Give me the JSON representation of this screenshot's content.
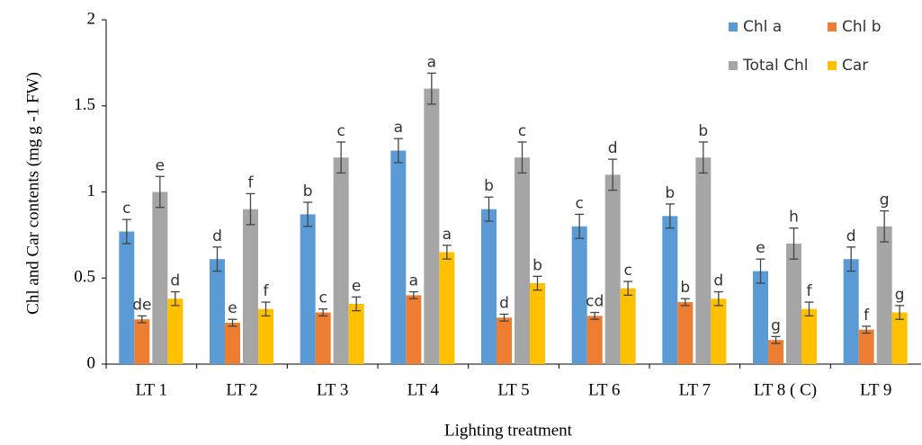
{
  "chart_data": {
    "type": "bar",
    "x_label": "Lighting treatment",
    "y_label": "Chl and Car contents (mg  g -1 FW)",
    "categories": [
      "LT 1",
      "LT 2",
      "LT 3",
      "LT 4",
      "LT 5",
      "LT 6",
      "LT 7",
      "LT 8 ( C)",
      "LT 9"
    ],
    "ylim": [
      0,
      2
    ],
    "yticks": [
      0,
      0.5,
      1,
      1.5,
      2
    ],
    "legend": "top-right",
    "series": [
      {
        "name": "Chl a",
        "color": "#5b9bd5",
        "values": [
          0.77,
          0.61,
          0.87,
          1.24,
          0.9,
          0.8,
          0.86,
          0.54,
          0.61
        ],
        "errors": [
          0.07,
          0.07,
          0.07,
          0.07,
          0.07,
          0.07,
          0.07,
          0.07,
          0.07
        ],
        "letters": [
          "c",
          "d",
          "b",
          "a",
          "b",
          "c",
          "b",
          "e",
          "d"
        ]
      },
      {
        "name": "Chl b",
        "color": "#ed7d31",
        "values": [
          0.26,
          0.24,
          0.3,
          0.4,
          0.27,
          0.28,
          0.36,
          0.14,
          0.2
        ],
        "errors": [
          0.02,
          0.02,
          0.02,
          0.02,
          0.02,
          0.02,
          0.02,
          0.02,
          0.02
        ],
        "letters": [
          "de",
          "e",
          "c",
          "a",
          "d",
          "cd",
          "b",
          "g",
          "f"
        ]
      },
      {
        "name": "Total Chl",
        "color": "#a5a5a5",
        "values": [
          1.0,
          0.9,
          1.2,
          1.6,
          1.2,
          1.1,
          1.2,
          0.7,
          0.8
        ],
        "errors": [
          0.09,
          0.09,
          0.09,
          0.09,
          0.09,
          0.09,
          0.09,
          0.09,
          0.09
        ],
        "letters": [
          "e",
          "f",
          "c",
          "a",
          "c",
          "d",
          "b",
          "h",
          "g"
        ]
      },
      {
        "name": "Car",
        "color": "#ffc000",
        "values": [
          0.38,
          0.32,
          0.35,
          0.65,
          0.47,
          0.44,
          0.38,
          0.32,
          0.3
        ],
        "errors": [
          0.04,
          0.04,
          0.04,
          0.04,
          0.04,
          0.04,
          0.04,
          0.04,
          0.04
        ],
        "letters": [
          "d",
          "f",
          "e",
          "a",
          "b",
          "c",
          "d",
          "f",
          "g"
        ]
      }
    ]
  }
}
